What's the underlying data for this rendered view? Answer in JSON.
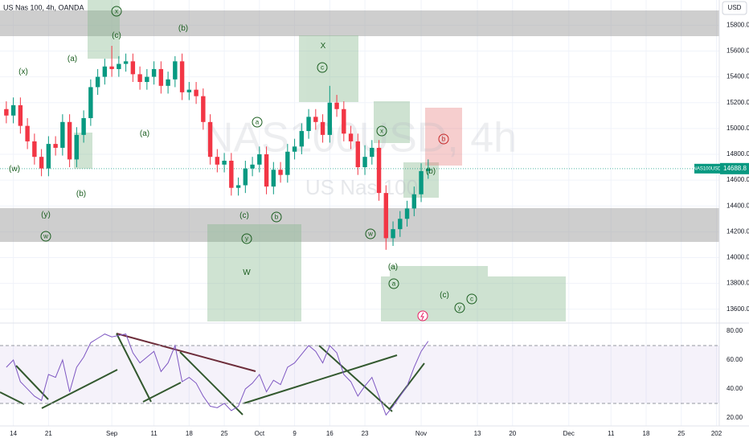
{
  "chart_data": {
    "type": "candlestick",
    "symbol_title": "US Nas 100, 4h, OANDA",
    "currency": "USD",
    "watermark": "NAS100USD, 4h",
    "watermark_sub": "US Nas 100",
    "open": [
      15150,
      15100,
      15180,
      15020,
      14900,
      14780,
      14690,
      14880,
      14850,
      15050,
      14760,
      14950,
      15080,
      15320,
      15400,
      15480,
      15460,
      15500,
      15520,
      15420,
      15360,
      15400,
      15460,
      15330,
      15380,
      15520,
      15280,
      15300,
      15250,
      15050,
      14780,
      14720,
      14750,
      14540,
      14560,
      14690,
      14720,
      14800,
      14550,
      14680,
      14640,
      14820,
      14860,
      14980,
      15090,
      15050,
      14950,
      15200,
      15150,
      14960,
      14900,
      14700,
      14780,
      14850,
      14500,
      14150,
      14220,
      14300,
      14380,
      14490,
      14670
    ],
    "high": [
      15210,
      15240,
      15240,
      15080,
      14960,
      14840,
      14940,
      14940,
      15110,
      15110,
      15010,
      15140,
      15380,
      15460,
      15540,
      15640,
      15560,
      15580,
      15580,
      15480,
      15460,
      15520,
      15520,
      15440,
      15560,
      15580,
      15360,
      15360,
      15310,
      15110,
      14840,
      14810,
      14810,
      14620,
      14750,
      14780,
      14860,
      14860,
      14740,
      14740,
      14880,
      14920,
      15040,
      15150,
      15150,
      15110,
      15330,
      15260,
      15210,
      15020,
      14960,
      14870,
      14910,
      14910,
      14560,
      14280,
      14360,
      14440,
      14550,
      14730,
      14760
    ],
    "low": [
      15040,
      15040,
      14960,
      14840,
      14720,
      14630,
      14630,
      14790,
      14790,
      14700,
      14700,
      14890,
      15020,
      15260,
      15340,
      15400,
      15400,
      15440,
      15360,
      15300,
      15300,
      15340,
      15270,
      15270,
      15320,
      15220,
      15220,
      15190,
      14990,
      14720,
      14660,
      14660,
      14480,
      14480,
      14500,
      14630,
      14660,
      14490,
      14490,
      14580,
      14580,
      14760,
      14800,
      14920,
      14990,
      14890,
      14890,
      15090,
      14900,
      14840,
      14640,
      14640,
      14720,
      14440,
      14060,
      14090,
      14160,
      14240,
      14320,
      14430,
      14610
    ],
    "close": [
      15100,
      15180,
      15020,
      14900,
      14780,
      14690,
      14880,
      14850,
      15050,
      14760,
      14950,
      15080,
      15320,
      15400,
      15480,
      15460,
      15500,
      15520,
      15420,
      15360,
      15400,
      15460,
      15330,
      15380,
      15520,
      15280,
      15300,
      15250,
      15050,
      14780,
      14720,
      14750,
      14540,
      14560,
      14690,
      14720,
      14800,
      14550,
      14680,
      14640,
      14820,
      14860,
      14980,
      15090,
      15050,
      14950,
      15200,
      15150,
      14960,
      14900,
      14700,
      14780,
      14850,
      14500,
      14150,
      14220,
      14300,
      14380,
      14490,
      14670,
      14688.8
    ],
    "up_color": "#089981",
    "down_color": "#f23645",
    "ylim": [
      13505,
      15995
    ],
    "yticks": [
      {
        "value": 13600,
        "label": "13600.0"
      },
      {
        "value": 13800,
        "label": "13800.0"
      },
      {
        "value": 14000,
        "label": "14000.0"
      },
      {
        "value": 14200,
        "label": "14200.0"
      },
      {
        "value": 14400,
        "label": "14400.0"
      },
      {
        "value": 14600,
        "label": "14600.0"
      },
      {
        "value": 14800,
        "label": "14800.0"
      },
      {
        "value": 15000,
        "label": "15000.0"
      },
      {
        "value": 15200,
        "label": "15200.0"
      },
      {
        "value": 15400,
        "label": "15400.0"
      },
      {
        "value": 15600,
        "label": "15600.0"
      },
      {
        "value": 15800,
        "label": "15800.0"
      }
    ],
    "xlim": [
      -0.9,
      101.4
    ],
    "xticks": [
      {
        "value": 1,
        "label": "14"
      },
      {
        "value": 6,
        "label": "21"
      },
      {
        "value": 15,
        "label": "Sep"
      },
      {
        "value": 21,
        "label": "11"
      },
      {
        "value": 26,
        "label": "18"
      },
      {
        "value": 31,
        "label": "25"
      },
      {
        "value": 36,
        "label": "Oct"
      },
      {
        "value": 41,
        "label": "9"
      },
      {
        "value": 46,
        "label": "16"
      },
      {
        "value": 51,
        "label": "23"
      },
      {
        "value": 59,
        "label": "Nov"
      },
      {
        "value": 67,
        "label": "13"
      },
      {
        "value": 72,
        "label": "20"
      },
      {
        "value": 80,
        "label": "Dec"
      },
      {
        "value": 86,
        "label": "11"
      },
      {
        "value": 91,
        "label": "18"
      },
      {
        "value": 96,
        "label": "25"
      },
      {
        "value": 101,
        "label": "202"
      }
    ],
    "last_price": {
      "name": "NAS100USD",
      "value": 14688.8
    },
    "rsi": {
      "color": "#7e57c2",
      "values": [
        55,
        60,
        45,
        40,
        35,
        32,
        50,
        48,
        60,
        38,
        55,
        62,
        72,
        75,
        78,
        76,
        77,
        78,
        65,
        58,
        62,
        66,
        52,
        58,
        70,
        45,
        48,
        44,
        35,
        28,
        27,
        30,
        25,
        28,
        40,
        44,
        50,
        38,
        46,
        43,
        55,
        58,
        64,
        70,
        66,
        58,
        70,
        65,
        50,
        45,
        35,
        42,
        48,
        35,
        22,
        28,
        35,
        42,
        55,
        66,
        73
      ],
      "ylim": [
        14.4,
        83.9
      ],
      "bands": [
        30,
        70
      ],
      "yticks": [
        {
          "value": 20,
          "label": "20.00"
        },
        {
          "value": 40,
          "label": "40.00"
        },
        {
          "value": 60,
          "label": "60.00"
        },
        {
          "value": 80,
          "label": "80.00"
        }
      ]
    },
    "wave_labels": [
      "x",
      "(c)",
      "(b)",
      "(a)",
      "(x)",
      "(a)",
      "(w)",
      "(b)",
      "(y)",
      "w",
      "a",
      "(c)",
      "b",
      "y",
      "W",
      "X",
      "c",
      "x",
      "b",
      "(b)",
      "w",
      "(a)",
      "a",
      "(c)",
      "c",
      "y"
    ]
  }
}
